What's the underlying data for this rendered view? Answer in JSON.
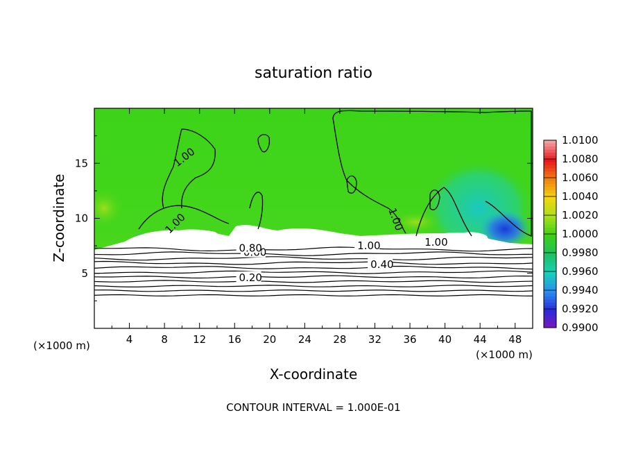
{
  "chart_data": {
    "type": "heatmap",
    "title": "saturation ratio",
    "xlabel": "X-coordinate",
    "ylabel": "Z-coordinate",
    "x_units_left": "(×1000 m)",
    "x_units_right": "(×1000 m)",
    "xlim": [
      0,
      50
    ],
    "ylim": [
      0,
      20
    ],
    "x_ticks": [
      4,
      8,
      12,
      16,
      20,
      24,
      28,
      32,
      36,
      40,
      44,
      48
    ],
    "y_ticks": [
      5,
      10,
      15
    ],
    "footer": "CONTOUR INTERVAL = 1.000E-01",
    "colorbar": {
      "labels": [
        "1.0100",
        "1.0080",
        "1.0060",
        "1.0040",
        "1.0020",
        "1.0000",
        "0.9980",
        "0.9960",
        "0.9940",
        "0.9920",
        "0.9900"
      ],
      "colors": [
        "#f2a0a0",
        "#e8161b",
        "#f08010",
        "#f2d610",
        "#a8e01a",
        "#3cd016",
        "#1ec060",
        "#18d0b8",
        "#2a8ef0",
        "#2a2ad8",
        "#8018b8"
      ]
    },
    "contours": [
      {
        "level": 0.2,
        "z": 4.6,
        "label": "0.20",
        "label_x": 16.5
      },
      {
        "level": 0.4,
        "z": 5.8,
        "label": "0.40",
        "label_x": 31.5
      },
      {
        "level": 0.6,
        "z": 6.9,
        "label": "0.60",
        "label_x": 17
      },
      {
        "level": 0.8,
        "z": 7.3,
        "label": "0.80",
        "label_x": 16.5
      },
      {
        "level": 1.0,
        "z": 7.5,
        "label": "1.00",
        "label_x": 30
      }
    ],
    "extra_contour_labels": [
      {
        "text": "1.00",
        "x": 10.5,
        "z": 15.3,
        "rotate": -38
      },
      {
        "text": "1.00",
        "x": 9.5,
        "z": 9.3,
        "rotate": -45
      },
      {
        "text": "1.00",
        "x": 34,
        "z": 9.8,
        "rotate": 70
      },
      {
        "text": "1.00",
        "x": 39,
        "z": 7.5,
        "rotate": 0
      }
    ]
  }
}
